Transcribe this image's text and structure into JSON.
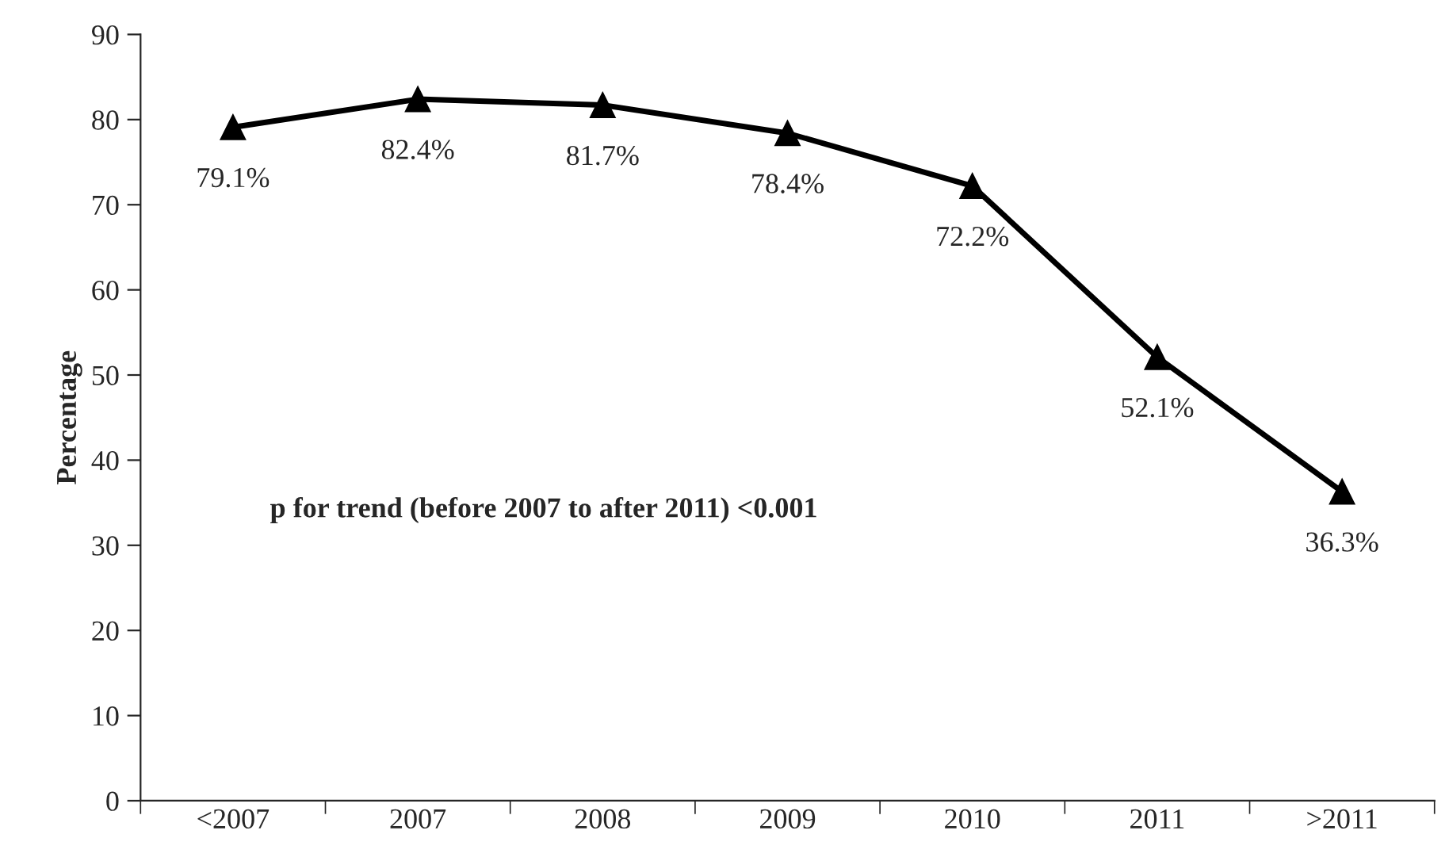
{
  "chart_data": {
    "type": "line",
    "ylabel": "Percentage",
    "categories": [
      "<2007",
      "2007",
      "2008",
      "2009",
      "2010",
      "2011",
      ">2011"
    ],
    "series": [
      {
        "color": "#000000",
        "values": [
          79.1,
          82.4,
          81.7,
          78.4,
          72.2,
          52.1,
          36.3
        ],
        "value_labels": [
          "79.1%",
          "82.4%",
          "81.7%",
          "78.4%",
          "72.2%",
          "52.1%",
          "36.3%"
        ]
      }
    ],
    "ylim": [
      0,
      90
    ],
    "yticks": [
      0,
      10,
      20,
      30,
      40,
      50,
      60,
      70,
      80,
      90
    ],
    "marker": "triangle",
    "line_style": "solid",
    "grid": false,
    "legend": false,
    "annotations": [
      "p for trend (before 2007 to after 2011) <0.001"
    ]
  }
}
